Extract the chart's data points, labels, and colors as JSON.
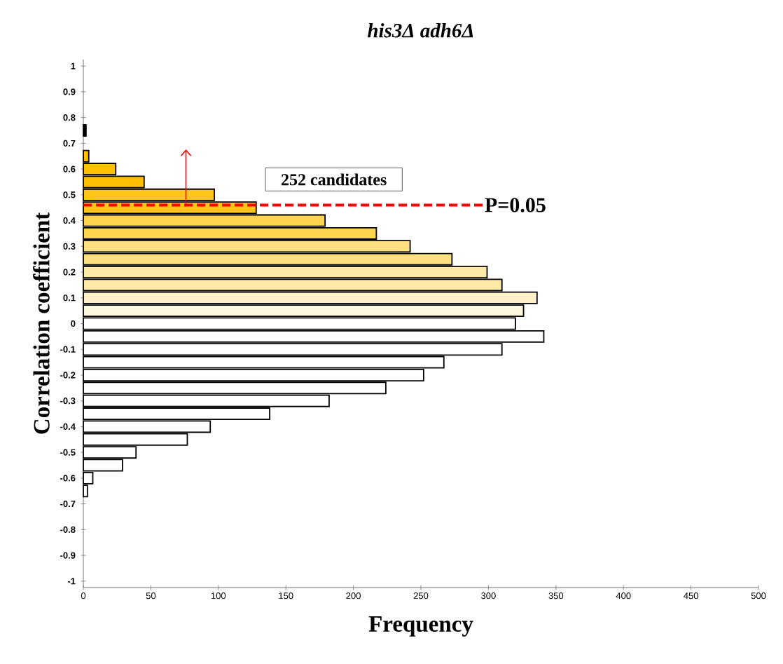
{
  "chart_data": {
    "type": "histogram",
    "orientation": "horizontal",
    "title": "his3Δ adh6Δ",
    "xlabel": "Frequency",
    "ylabel": "Correlation coefficient",
    "bins": [
      -1.025,
      -0.975,
      -0.925,
      -0.875,
      -0.825,
      -0.775,
      -0.725,
      -0.675,
      -0.625,
      -0.575,
      -0.525,
      -0.475,
      -0.425,
      -0.375,
      -0.325,
      -0.275,
      -0.225,
      -0.175,
      -0.125,
      -0.075,
      -0.025,
      0.025,
      0.075,
      0.125,
      0.175,
      0.225,
      0.275,
      0.325,
      0.375,
      0.425,
      0.475,
      0.525,
      0.575,
      0.625,
      0.675,
      0.725,
      0.775,
      0.825,
      0.875,
      0.925,
      0.975,
      1.025
    ],
    "values": [
      null,
      null,
      null,
      null,
      null,
      null,
      null,
      3,
      7,
      29,
      39,
      77,
      94,
      138,
      182,
      224,
      252,
      267,
      310,
      341,
      320,
      326,
      336,
      310,
      299,
      273,
      242,
      217,
      179,
      128,
      97,
      45,
      24,
      4,
      null,
      2,
      null,
      null,
      null,
      null,
      null
    ],
    "colors": [
      "#ffffff",
      "#ffffff",
      "#ffffff",
      "#ffffff",
      "#ffffff",
      "#ffffff",
      "#ffffff",
      "#ffffff",
      "#ffffff",
      "#ffffff",
      "#ffffff",
      "#ffffff",
      "#ffffff",
      "#ffffff",
      "#ffffff",
      "#ffffff",
      "#ffffff",
      "#ffffff",
      "#ffffff",
      "#ffffff",
      "#ffffff",
      "#fff7e0",
      "#fff0c8",
      "#ffe9a6",
      "#ffe9a6",
      "#ffe080",
      "#ffe080",
      "#ffd54f",
      "#ffd54f",
      "#ffc619",
      "#ffc619",
      "#ffc000",
      "#ffc000",
      "#ffc000",
      "#ffc000",
      "#000000",
      "#ffffff",
      "#ffffff",
      "#ffffff",
      "#ffffff",
      "#ffffff"
    ],
    "xlim": [
      0,
      500
    ],
    "xticks": [
      0,
      50,
      100,
      150,
      200,
      250,
      300,
      350,
      400,
      450,
      500
    ],
    "ylim": [
      -1.025,
      1.025
    ],
    "yticks": [
      -1,
      -0.9,
      -0.8,
      -0.7,
      -0.6,
      -0.5,
      -0.4,
      -0.3,
      -0.2,
      -0.1,
      0,
      0.1,
      0.2,
      0.3,
      0.4,
      0.5,
      0.6,
      0.7,
      0.8,
      0.9,
      1
    ],
    "ref_lines": [
      {
        "axis": "y",
        "value": 0.46,
        "color": "#ff0000",
        "line_style": "dashed"
      }
    ],
    "annotations": [
      "252 candidates",
      "P=0.05"
    ]
  }
}
